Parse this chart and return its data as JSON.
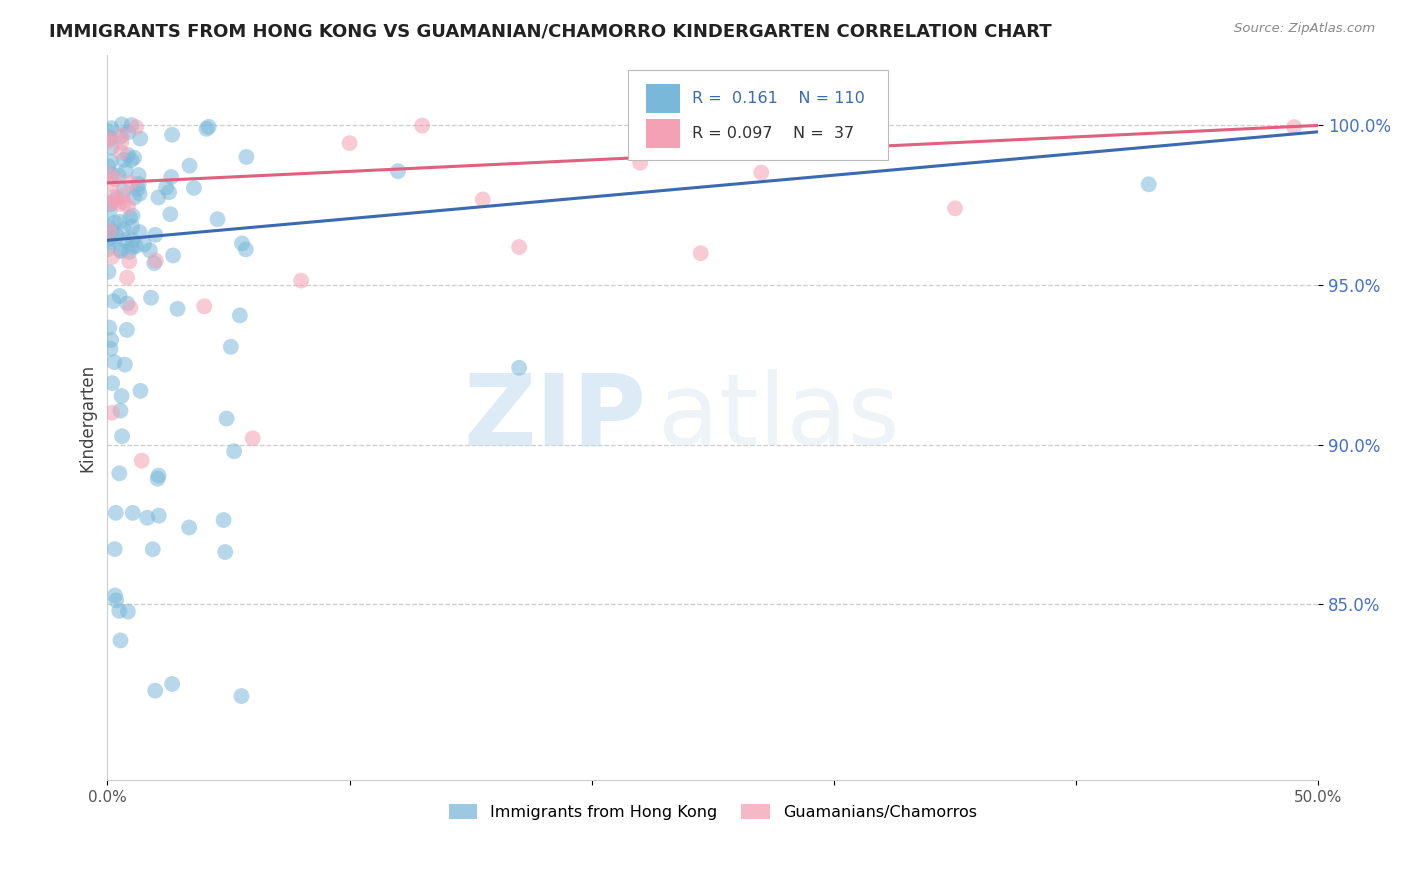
{
  "title": "IMMIGRANTS FROM HONG KONG VS GUAMANIAN/CHAMORRO KINDERGARTEN CORRELATION CHART",
  "source": "Source: ZipAtlas.com",
  "ylabel": "Kindergarten",
  "xlim": [
    0.0,
    0.5
  ],
  "ylim": [
    0.795,
    1.022
  ],
  "xticks": [
    0.0,
    0.1,
    0.2,
    0.3,
    0.4,
    0.5
  ],
  "xticklabels": [
    "0.0%",
    "",
    "",
    "",
    "",
    "50.0%"
  ],
  "yticks": [
    0.85,
    0.9,
    0.95,
    1.0
  ],
  "yticklabels": [
    "85.0%",
    "90.0%",
    "95.0%",
    "100.0%"
  ],
  "blue_color": "#7ab8d9",
  "pink_color": "#f4a0b5",
  "blue_line_color": "#3a6ab0",
  "pink_line_color": "#e0607e",
  "R_blue": 0.161,
  "N_blue": 110,
  "R_pink": 0.097,
  "N_pink": 37,
  "watermark_zip": "ZIP",
  "watermark_atlas": "atlas",
  "legend_label_blue": "Immigrants from Hong Kong",
  "legend_label_pink": "Guamanians/Chamorros",
  "blue_trend_x0": 0.0,
  "blue_trend_y0": 0.964,
  "blue_trend_x1": 0.5,
  "blue_trend_y1": 0.998,
  "pink_trend_x0": 0.0,
  "pink_trend_y0": 0.982,
  "pink_trend_x1": 0.5,
  "pink_trend_y1": 1.0
}
